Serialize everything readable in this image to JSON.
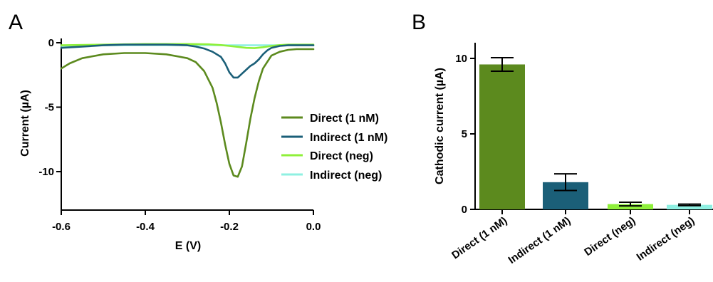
{
  "panel_a_letter": "A",
  "panel_b_letter": "B",
  "colors": {
    "direct_1nm": "#5c8a1e",
    "indirect_1nm": "#1b5f78",
    "direct_neg": "#8ff03a",
    "indirect_neg": "#8ff0e2"
  },
  "chart_data": [
    {
      "type": "line",
      "panel": "A",
      "xlabel": "E (V)",
      "ylabel": "Current (µA)",
      "xlim": [
        -0.6,
        0.0
      ],
      "ylim": [
        -13,
        0.2
      ],
      "xticks": [
        -0.6,
        -0.4,
        -0.2,
        0.0
      ],
      "xtick_labels": [
        "-0.6",
        "-0.4",
        "-0.2",
        "0.0"
      ],
      "yticks": [
        0,
        -5,
        -10
      ],
      "ytick_labels": [
        "0",
        "-5",
        "-10"
      ],
      "grid": false,
      "legend_position": "right",
      "series": [
        {
          "name": "Direct (1 nM)",
          "color": "#5c8a1e",
          "x": [
            -0.6,
            -0.58,
            -0.55,
            -0.5,
            -0.45,
            -0.4,
            -0.35,
            -0.3,
            -0.28,
            -0.26,
            -0.24,
            -0.23,
            -0.22,
            -0.21,
            -0.2,
            -0.19,
            -0.18,
            -0.17,
            -0.16,
            -0.15,
            -0.14,
            -0.13,
            -0.12,
            -0.1,
            -0.08,
            -0.06,
            -0.04,
            -0.02,
            0.0
          ],
          "y": [
            -2.0,
            -1.6,
            -1.2,
            -0.9,
            -0.8,
            -0.8,
            -0.9,
            -1.2,
            -1.5,
            -2.2,
            -3.5,
            -4.7,
            -6.2,
            -7.9,
            -9.4,
            -10.3,
            -10.4,
            -9.6,
            -7.8,
            -5.9,
            -4.3,
            -3.0,
            -2.0,
            -1.0,
            -0.7,
            -0.55,
            -0.5,
            -0.5,
            -0.5
          ]
        },
        {
          "name": "Indirect (1 nM)",
          "color": "#1b5f78",
          "x": [
            -0.6,
            -0.55,
            -0.5,
            -0.45,
            -0.4,
            -0.35,
            -0.3,
            -0.28,
            -0.26,
            -0.24,
            -0.22,
            -0.21,
            -0.2,
            -0.19,
            -0.18,
            -0.17,
            -0.16,
            -0.15,
            -0.14,
            -0.13,
            -0.12,
            -0.11,
            -0.1,
            -0.08,
            -0.06,
            -0.04,
            -0.02,
            0.0
          ],
          "y": [
            -0.4,
            -0.3,
            -0.2,
            -0.15,
            -0.15,
            -0.15,
            -0.2,
            -0.3,
            -0.45,
            -0.7,
            -1.1,
            -1.6,
            -2.3,
            -2.7,
            -2.7,
            -2.4,
            -2.1,
            -1.8,
            -1.6,
            -1.3,
            -0.9,
            -0.6,
            -0.4,
            -0.25,
            -0.2,
            -0.2,
            -0.2,
            -0.2
          ]
        },
        {
          "name": "Direct (neg)",
          "color": "#8ff03a",
          "x": [
            -0.6,
            -0.5,
            -0.4,
            -0.3,
            -0.25,
            -0.22,
            -0.2,
            -0.18,
            -0.16,
            -0.14,
            -0.12,
            -0.1,
            -0.08,
            -0.06,
            -0.04,
            -0.02,
            0.0
          ],
          "y": [
            -0.2,
            -0.15,
            -0.1,
            -0.1,
            -0.12,
            -0.18,
            -0.25,
            -0.32,
            -0.4,
            -0.42,
            -0.35,
            -0.25,
            -0.18,
            -0.15,
            -0.15,
            -0.15,
            -0.15
          ]
        },
        {
          "name": "Indirect (neg)",
          "color": "#8ff0e2",
          "x": [
            -0.6,
            -0.5,
            -0.4,
            -0.3,
            -0.2,
            -0.1,
            0.0
          ],
          "y": [
            -0.25,
            -0.2,
            -0.18,
            -0.18,
            -0.2,
            -0.2,
            -0.2
          ]
        }
      ]
    },
    {
      "type": "bar",
      "panel": "B",
      "ylabel": "Cathodic current (µA)",
      "categories": [
        "Direct (1 nM)",
        "Indirect (1 nM)",
        "Direct (neg)",
        "Indirect (neg)"
      ],
      "values": [
        9.6,
        1.8,
        0.35,
        0.3
      ],
      "errors": [
        0.45,
        0.55,
        0.12,
        0.05
      ],
      "colors": [
        "#5c8a1e",
        "#1b5f78",
        "#8ff03a",
        "#8ff0e2"
      ],
      "ylim": [
        0,
        11.5
      ],
      "yticks": [
        0,
        5,
        10
      ],
      "ytick_labels": [
        "0",
        "5",
        "10"
      ],
      "grid": false
    }
  ]
}
